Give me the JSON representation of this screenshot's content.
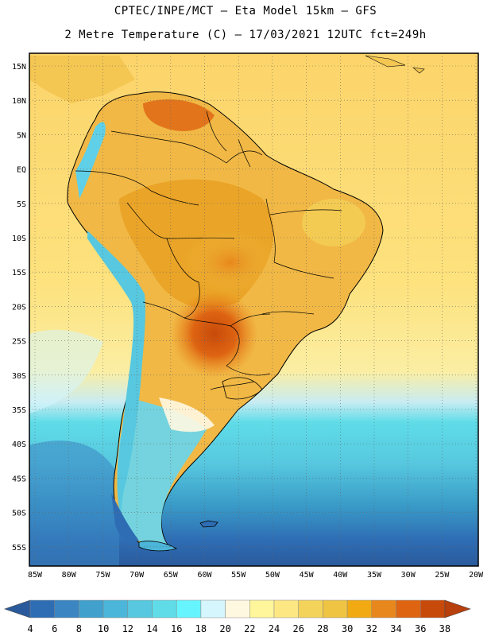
{
  "header": {
    "title_line1": "CPTEC/INPE/MCT –  Eta Model 15km – GFS",
    "title_line2": "2 Metre Temperature (C) – 17/03/2021 12UTC fct=249h"
  },
  "map": {
    "region": "South America",
    "variable": "2 Metre Temperature",
    "units": "C",
    "lat_labels": [
      "15N",
      "10N",
      "5N",
      "EQ",
      "5S",
      "10S",
      "15S",
      "20S",
      "25S",
      "30S",
      "35S",
      "40S",
      "45S",
      "50S",
      "55S"
    ],
    "lon_labels": [
      "85W",
      "80W",
      "75W",
      "70W",
      "65W",
      "60W",
      "55W",
      "50W",
      "45W",
      "40W",
      "35W",
      "30W",
      "25W",
      "20W"
    ]
  },
  "colorbar": {
    "labels": [
      "4",
      "6",
      "8",
      "10",
      "12",
      "14",
      "16",
      "18",
      "20",
      "22",
      "24",
      "26",
      "28",
      "30",
      "32",
      "34",
      "36",
      "38"
    ],
    "colors": [
      "#2e6db4",
      "#3a85c2",
      "#41a0cc",
      "#4bb6d9",
      "#57c8df",
      "#5fdce8",
      "#66f5ff",
      "#d6f6fd",
      "#fff8e1",
      "#fff59a",
      "#fde783",
      "#f4d35a",
      "#efc443",
      "#f2aa12",
      "#e8871c",
      "#de6412",
      "#c84a0a"
    ],
    "low_arrow_color": "#2a5a9c",
    "high_arrow_color": "#b8400c"
  },
  "colors": {
    "ocean_warm": "#fde07a",
    "ocean_cold": "#3aa6d0",
    "land_hot": "#c85a12",
    "andes_cold": "#5fd0e8"
  }
}
